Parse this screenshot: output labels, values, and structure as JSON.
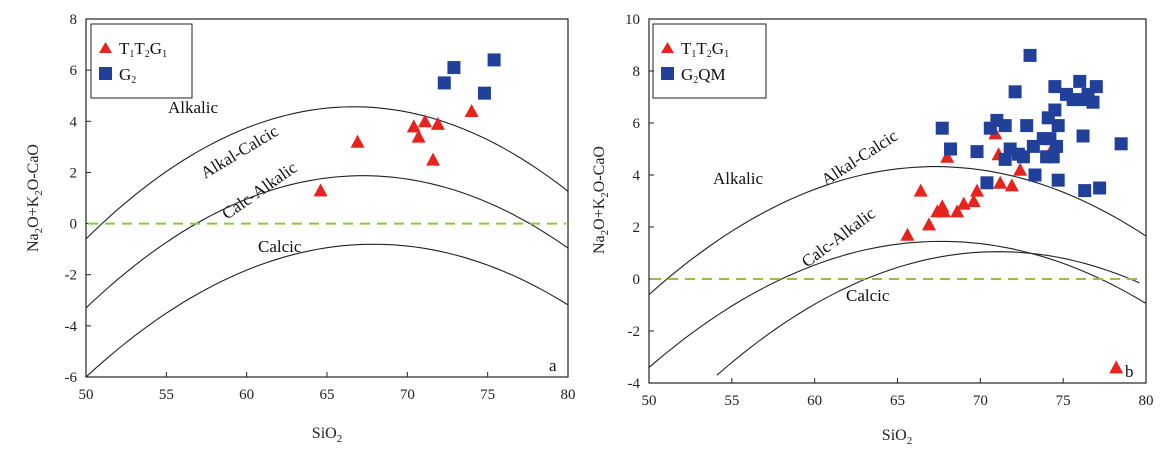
{
  "chart_data": [
    {
      "type": "scatter",
      "panel_label": "a",
      "xlabel": "SiO2",
      "ylabel": "Na2O+K2O-CaO",
      "xlim": [
        50,
        80
      ],
      "ylim": [
        -6,
        8
      ],
      "xticks": [
        "50",
        "55",
        "60",
        "65",
        "70",
        "75",
        "80"
      ],
      "yticks": [
        "8",
        "6",
        "4",
        "2",
        "0",
        "-2",
        "-4",
        "-6"
      ],
      "region_labels": [
        "Alkalic",
        "Alkal-Calcic",
        "Calc-Alkalic",
        "Calcic"
      ],
      "legend": [
        "T1T2G1",
        "G2"
      ],
      "series": [
        {
          "name": "T1T2G1",
          "marker": "triangle",
          "color": "#e8231e",
          "points": [
            [
              64.6,
              1.3
            ],
            [
              66.9,
              3.2
            ],
            [
              70.4,
              3.8
            ],
            [
              70.7,
              3.4
            ],
            [
              71.1,
              4.0
            ],
            [
              71.6,
              2.5
            ],
            [
              71.9,
              3.9
            ],
            [
              74.0,
              4.4
            ]
          ]
        },
        {
          "name": "G2",
          "marker": "square",
          "color": "#21409a",
          "points": [
            [
              72.3,
              5.5
            ],
            [
              72.9,
              6.1
            ],
            [
              74.8,
              5.1
            ],
            [
              75.4,
              6.4
            ]
          ]
        }
      ],
      "reference_line": {
        "y": 0,
        "style": "dashed",
        "color": "#8cc63f"
      }
    },
    {
      "type": "scatter",
      "panel_label": "b",
      "xlabel": "SiO2",
      "ylabel": "Na2O+K2O-CaO",
      "xlim": [
        50,
        80
      ],
      "ylim": [
        -4,
        10
      ],
      "xticks": [
        "50",
        "55",
        "60",
        "65",
        "70",
        "75",
        "80"
      ],
      "yticks": [
        "10",
        "8",
        "6",
        "4",
        "2",
        "0",
        "-2",
        "-4"
      ],
      "region_labels": [
        "Alkalic",
        "Alkal-Calcic",
        "Calc-Alkalic",
        "Calcic"
      ],
      "legend": [
        "T1T2G1",
        "G2QM"
      ],
      "series": [
        {
          "name": "T1T2G1",
          "marker": "triangle",
          "color": "#e8231e",
          "points": [
            [
              65.6,
              1.7
            ],
            [
              66.4,
              3.4
            ],
            [
              66.9,
              2.1
            ],
            [
              67.4,
              2.6
            ],
            [
              67.7,
              2.8
            ],
            [
              67.8,
              2.6
            ],
            [
              68.0,
              4.7
            ],
            [
              68.6,
              2.6
            ],
            [
              69.0,
              2.9
            ],
            [
              69.6,
              3.0
            ],
            [
              69.8,
              3.4
            ],
            [
              70.9,
              5.6
            ],
            [
              71.1,
              4.8
            ],
            [
              71.2,
              3.7
            ],
            [
              71.9,
              3.6
            ],
            [
              72.4,
              4.2
            ],
            [
              74.4,
              5.1
            ],
            [
              78.2,
              -3.4
            ]
          ]
        },
        {
          "name": "G2QM",
          "marker": "square",
          "color": "#21409a",
          "points": [
            [
              67.7,
              5.8
            ],
            [
              68.2,
              5.0
            ],
            [
              69.8,
              4.9
            ],
            [
              70.4,
              3.7
            ],
            [
              70.6,
              5.8
            ],
            [
              71.0,
              6.1
            ],
            [
              71.5,
              5.9
            ],
            [
              71.5,
              4.6
            ],
            [
              71.8,
              5.0
            ],
            [
              72.1,
              7.2
            ],
            [
              72.3,
              4.8
            ],
            [
              72.6,
              4.7
            ],
            [
              72.8,
              5.9
            ],
            [
              73.0,
              8.6
            ],
            [
              73.2,
              5.1
            ],
            [
              73.3,
              4.0
            ],
            [
              73.8,
              5.4
            ],
            [
              74.0,
              4.7
            ],
            [
              74.1,
              6.2
            ],
            [
              74.2,
              5.4
            ],
            [
              74.4,
              4.7
            ],
            [
              74.5,
              6.5
            ],
            [
              74.5,
              7.4
            ],
            [
              74.6,
              5.1
            ],
            [
              74.7,
              5.9
            ],
            [
              74.7,
              3.8
            ],
            [
              75.2,
              7.1
            ],
            [
              75.6,
              6.9
            ],
            [
              76.0,
              7.6
            ],
            [
              76.1,
              6.9
            ],
            [
              76.2,
              5.5
            ],
            [
              76.3,
              3.4
            ],
            [
              76.5,
              7.1
            ],
            [
              76.8,
              6.8
            ],
            [
              77.0,
              7.4
            ],
            [
              77.2,
              3.5
            ],
            [
              78.5,
              5.2
            ]
          ]
        }
      ],
      "reference_line": {
        "y": 0,
        "style": "dashed",
        "color": "#8cc63f"
      }
    }
  ]
}
